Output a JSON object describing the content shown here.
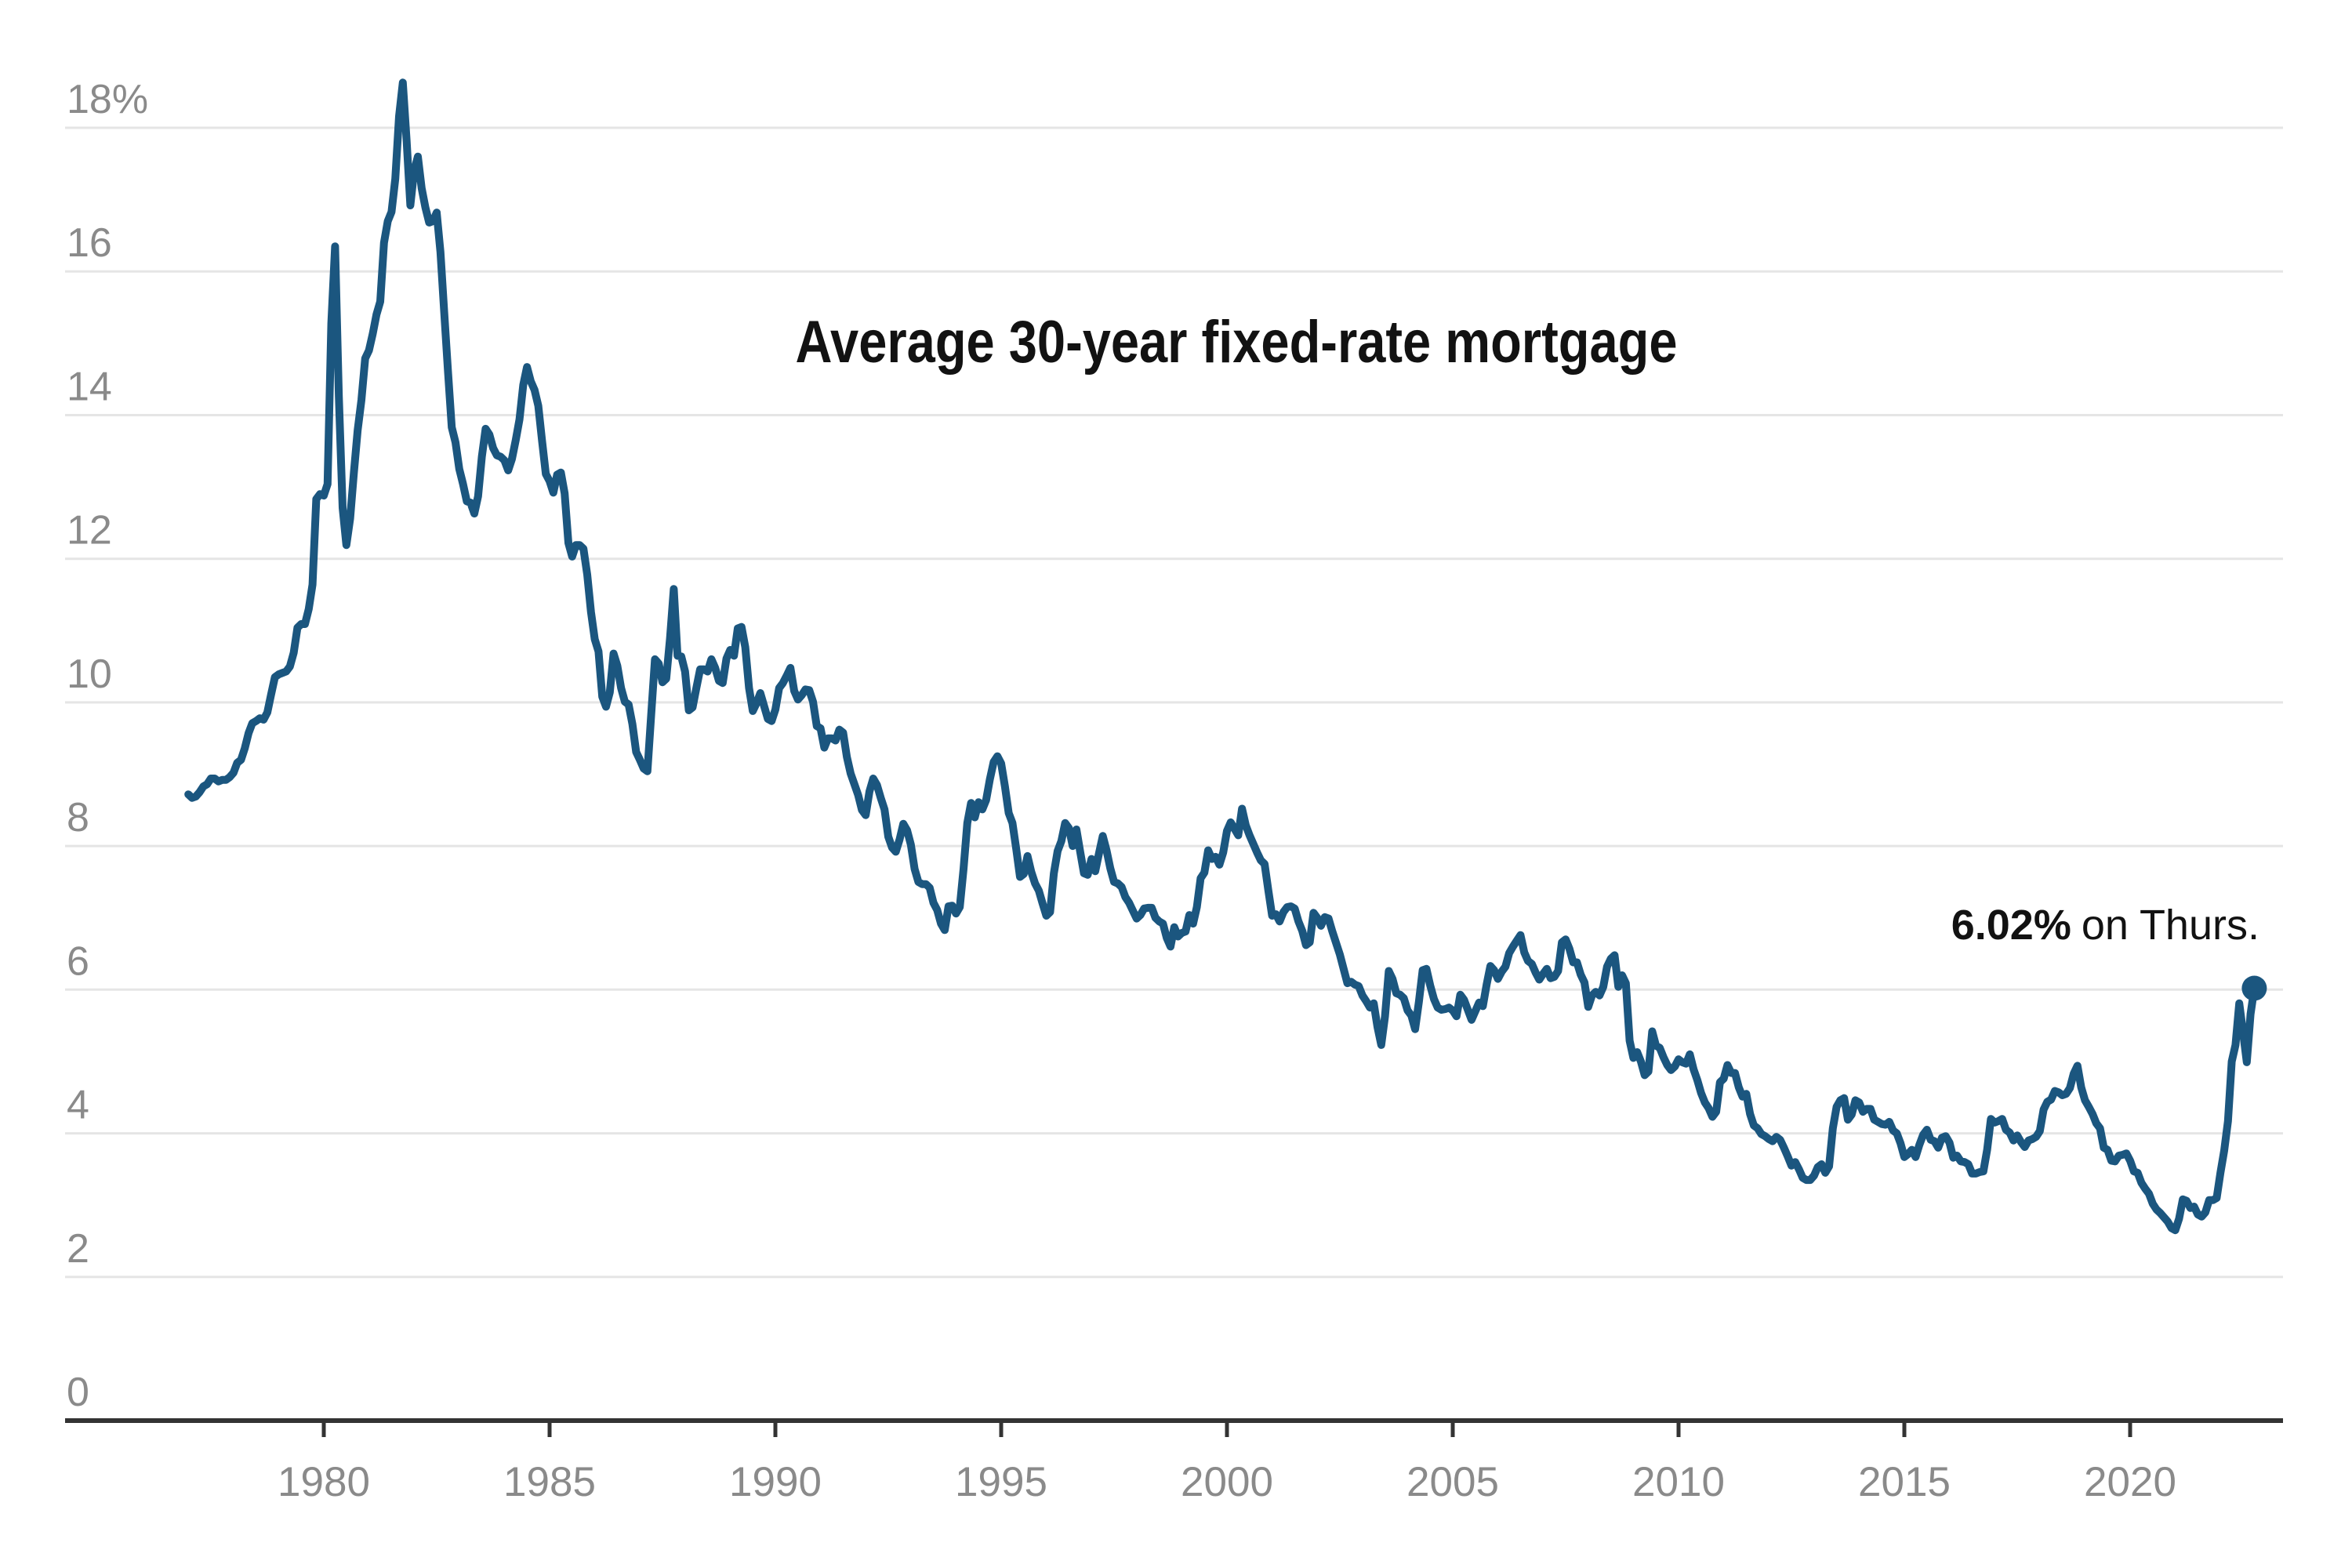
{
  "chart_data": {
    "type": "line",
    "title": "Average 30-year fixed-rate mortgage",
    "annotation": {
      "bold_text": "6.02%",
      "regular_text": "on Thurs."
    },
    "latest_point": {
      "value": 6.02,
      "period": "Thurs."
    },
    "unit": "percent",
    "x_start_year": 1977,
    "points_per_year": 12,
    "x_axis": {
      "tick_years": [
        1980,
        1985,
        1990,
        1995,
        2000,
        2005,
        2010,
        2015,
        2020
      ]
    },
    "y_axis": {
      "labels": [
        {
          "text": "18%",
          "value": 18
        },
        {
          "text": "16",
          "value": 16
        },
        {
          "text": "14",
          "value": 14
        },
        {
          "text": "12",
          "value": 12
        },
        {
          "text": "10",
          "value": 10
        },
        {
          "text": "8",
          "value": 8
        },
        {
          "text": "6",
          "value": 6
        },
        {
          "text": "4",
          "value": 4
        },
        {
          "text": "2",
          "value": 2
        },
        {
          "text": "0",
          "value": 0
        }
      ],
      "range": [
        0,
        18.63
      ],
      "gridlines": true
    },
    "colors": {
      "line": "#1b567f",
      "dot": "#1b567f",
      "gridline": "#e5e5e5",
      "axis": "#333333",
      "tick_label": "#8a8a8a",
      "text": "#121212"
    },
    "series": [
      {
        "name": "30-year fixed-rate mortgage",
        "cadence": "monthly from Jan 1977, final point mid-Sep 2022",
        "values": [
          8.72,
          8.67,
          8.69,
          8.75,
          8.83,
          8.86,
          8.94,
          8.94,
          8.9,
          8.92,
          8.92,
          8.96,
          9.02,
          9.16,
          9.2,
          9.36,
          9.57,
          9.71,
          9.74,
          9.78,
          9.76,
          9.86,
          10.11,
          10.35,
          10.39,
          10.41,
          10.43,
          10.5,
          10.69,
          11.04,
          11.09,
          11.09,
          11.3,
          11.64,
          12.83,
          12.9,
          12.88,
          13.04,
          15.28,
          16.35,
          14.26,
          12.71,
          12.19,
          12.56,
          13.2,
          13.79,
          14.21,
          14.79,
          14.9,
          15.13,
          15.4,
          15.58,
          16.4,
          16.7,
          16.83,
          17.29,
          18.16,
          18.63,
          17.83,
          16.92,
          17.4,
          17.6,
          17.16,
          16.89,
          16.68,
          16.7,
          16.82,
          16.27,
          15.43,
          14.61,
          13.83,
          13.62,
          13.25,
          13.04,
          12.8,
          12.78,
          12.63,
          12.87,
          13.42,
          13.81,
          13.73,
          13.54,
          13.44,
          13.42,
          13.37,
          13.23,
          13.39,
          13.65,
          13.94,
          14.42,
          14.67,
          14.47,
          14.35,
          14.13,
          13.64,
          13.18,
          13.08,
          12.92,
          13.17,
          13.2,
          12.91,
          12.22,
          12.03,
          12.19,
          12.19,
          12.14,
          11.78,
          11.26,
          10.88,
          10.71,
          10.08,
          9.94,
          10.14,
          10.68,
          10.51,
          10.2,
          10.01,
          9.97,
          9.7,
          9.31,
          9.2,
          9.08,
          9.04,
          9.83,
          10.6,
          10.54,
          10.28,
          10.33,
          10.89,
          11.58,
          10.65,
          10.64,
          10.43,
          9.89,
          9.93,
          10.2,
          10.46,
          10.46,
          10.43,
          10.6,
          10.48,
          10.3,
          10.27,
          10.61,
          10.73,
          10.65,
          11.03,
          11.05,
          10.77,
          10.2,
          9.88,
          9.99,
          10.13,
          9.95,
          9.77,
          9.74,
          9.9,
          10.2,
          10.27,
          10.37,
          10.48,
          10.16,
          10.04,
          10.1,
          10.18,
          10.17,
          10.01,
          9.67,
          9.64,
          9.37,
          9.5,
          9.5,
          9.47,
          9.62,
          9.58,
          9.24,
          9.01,
          8.86,
          8.71,
          8.5,
          8.43,
          8.76,
          8.94,
          8.85,
          8.67,
          8.51,
          8.13,
          7.98,
          7.92,
          8.09,
          8.31,
          8.22,
          8.02,
          7.68,
          7.5,
          7.47,
          7.47,
          7.42,
          7.21,
          7.11,
          6.92,
          6.83,
          7.16,
          7.17,
          7.06,
          7.15,
          7.68,
          8.32,
          8.6,
          8.4,
          8.61,
          8.51,
          8.64,
          8.93,
          9.17,
          9.25,
          9.15,
          8.83,
          8.46,
          8.32,
          7.96,
          7.57,
          7.61,
          7.86,
          7.64,
          7.48,
          7.38,
          7.2,
          7.03,
          7.08,
          7.62,
          7.93,
          8.07,
          8.32,
          8.25,
          8.0,
          8.23,
          7.92,
          7.62,
          7.6,
          7.82,
          7.65,
          7.9,
          8.14,
          7.94,
          7.69,
          7.5,
          7.48,
          7.43,
          7.29,
          7.21,
          7.1,
          6.99,
          7.04,
          7.13,
          7.14,
          7.14,
          7.0,
          6.95,
          6.92,
          6.72,
          6.6,
          6.87,
          6.74,
          6.79,
          6.81,
          7.04,
          6.92,
          7.15,
          7.55,
          7.63,
          7.94,
          7.82,
          7.85,
          7.74,
          7.91,
          8.21,
          8.33,
          8.24,
          8.15,
          8.52,
          8.29,
          8.15,
          8.03,
          7.91,
          7.8,
          7.75,
          7.38,
          7.03,
          7.05,
          6.95,
          7.08,
          7.15,
          7.16,
          7.13,
          6.95,
          6.82,
          6.62,
          6.66,
          7.07,
          7.0,
          6.89,
          7.01,
          6.99,
          6.81,
          6.65,
          6.49,
          6.29,
          6.09,
          6.11,
          6.07,
          6.05,
          5.92,
          5.84,
          5.75,
          5.81,
          5.48,
          5.23,
          5.63,
          6.26,
          6.15,
          5.95,
          5.93,
          5.88,
          5.71,
          5.64,
          5.45,
          5.83,
          6.27,
          6.29,
          6.06,
          5.87,
          5.75,
          5.72,
          5.73,
          5.75,
          5.71,
          5.63,
          5.93,
          5.86,
          5.72,
          5.58,
          5.7,
          5.82,
          5.77,
          6.07,
          6.33,
          6.27,
          6.15,
          6.25,
          6.32,
          6.51,
          6.6,
          6.68,
          6.76,
          6.52,
          6.4,
          6.36,
          6.24,
          6.14,
          6.22,
          6.29,
          6.16,
          6.18,
          6.26,
          6.66,
          6.7,
          6.57,
          6.38,
          6.38,
          6.21,
          6.1,
          5.76,
          5.92,
          5.97,
          5.92,
          6.04,
          6.32,
          6.43,
          6.48,
          6.04,
          6.2,
          6.09,
          5.29,
          5.05,
          5.13,
          5.0,
          4.81,
          4.86,
          5.42,
          5.22,
          5.19,
          5.06,
          4.95,
          4.88,
          4.93,
          5.03,
          4.99,
          4.97,
          5.1,
          4.89,
          4.74,
          4.56,
          4.43,
          4.35,
          4.23,
          4.3,
          4.71,
          4.76,
          4.95,
          4.84,
          4.84,
          4.64,
          4.51,
          4.55,
          4.27,
          4.11,
          4.07,
          3.99,
          3.96,
          3.92,
          3.89,
          3.95,
          3.91,
          3.8,
          3.68,
          3.55,
          3.6,
          3.5,
          3.38,
          3.35,
          3.35,
          3.41,
          3.53,
          3.57,
          3.45,
          3.54,
          4.07,
          4.37,
          4.46,
          4.49,
          4.19,
          4.26,
          4.46,
          4.43,
          4.3,
          4.34,
          4.34,
          4.19,
          4.16,
          4.13,
          4.12,
          4.16,
          4.04,
          4.0,
          3.86,
          3.67,
          3.71,
          3.77,
          3.67,
          3.84,
          3.98,
          4.05,
          3.91,
          3.89,
          3.8,
          3.94,
          3.96,
          3.87,
          3.66,
          3.69,
          3.61,
          3.6,
          3.57,
          3.44,
          3.44,
          3.46,
          3.47,
          3.77,
          4.2,
          4.15,
          4.17,
          4.2,
          4.05,
          4.01,
          3.9,
          3.97,
          3.88,
          3.81,
          3.9,
          3.92,
          3.95,
          4.03,
          4.33,
          4.44,
          4.47,
          4.59,
          4.57,
          4.53,
          4.55,
          4.63,
          4.83,
          4.94,
          4.64,
          4.46,
          4.37,
          4.27,
          4.14,
          4.07,
          3.8,
          3.77,
          3.62,
          3.61,
          3.69,
          3.7,
          3.72,
          3.62,
          3.47,
          3.45,
          3.31,
          3.23,
          3.16,
          3.02,
          2.94,
          2.89,
          2.83,
          2.77,
          2.68,
          2.65,
          2.81,
          3.08,
          3.06,
          2.96,
          2.98,
          2.87,
          2.84,
          2.9,
          3.07,
          3.07,
          3.1,
          3.45,
          3.76,
          4.17,
          5.0,
          5.23,
          5.81,
          5.41,
          4.99,
          5.66,
          6.02
        ]
      }
    ]
  }
}
